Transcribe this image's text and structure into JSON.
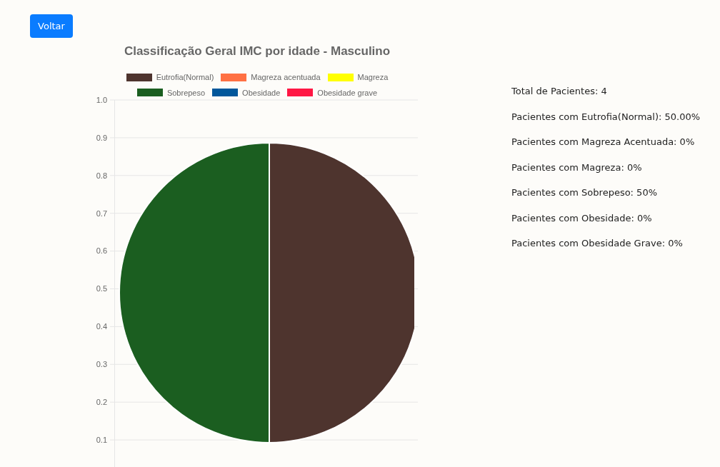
{
  "chart_data": {
    "type": "pie",
    "title": "Classificação Geral IMC por idade - Masculino",
    "categories": [
      "Eutrofia(Normal)",
      "Magreza acentuada",
      "Magreza",
      "Sobrepeso",
      "Obesidade",
      "Obesidade grave"
    ],
    "values": [
      50,
      0,
      0,
      50,
      0,
      0
    ],
    "colors": [
      "#4e342e",
      "#ff7043",
      "#ffff00",
      "#1b5e20",
      "#01579b",
      "#ff1744"
    ],
    "legend": "top",
    "annotations": [
      "Voltar",
      "1.0",
      "0.9",
      "0.8",
      "0.7",
      "0.6",
      "0.5",
      "0.4",
      "0.3",
      "0.2",
      "0.1",
      "Total de Pacientes: 4",
      "Pacientes com Eutrofia(Normal): 50.00%",
      "Pacientes com Magreza Acentuada: 0%",
      "Pacientes com Magreza: 0%",
      "Pacientes com Sobrepeso: 50%",
      "Pacientes com Obesidade: 0%",
      "Pacientes com Obesidade Grave: 0%"
    ]
  }
}
